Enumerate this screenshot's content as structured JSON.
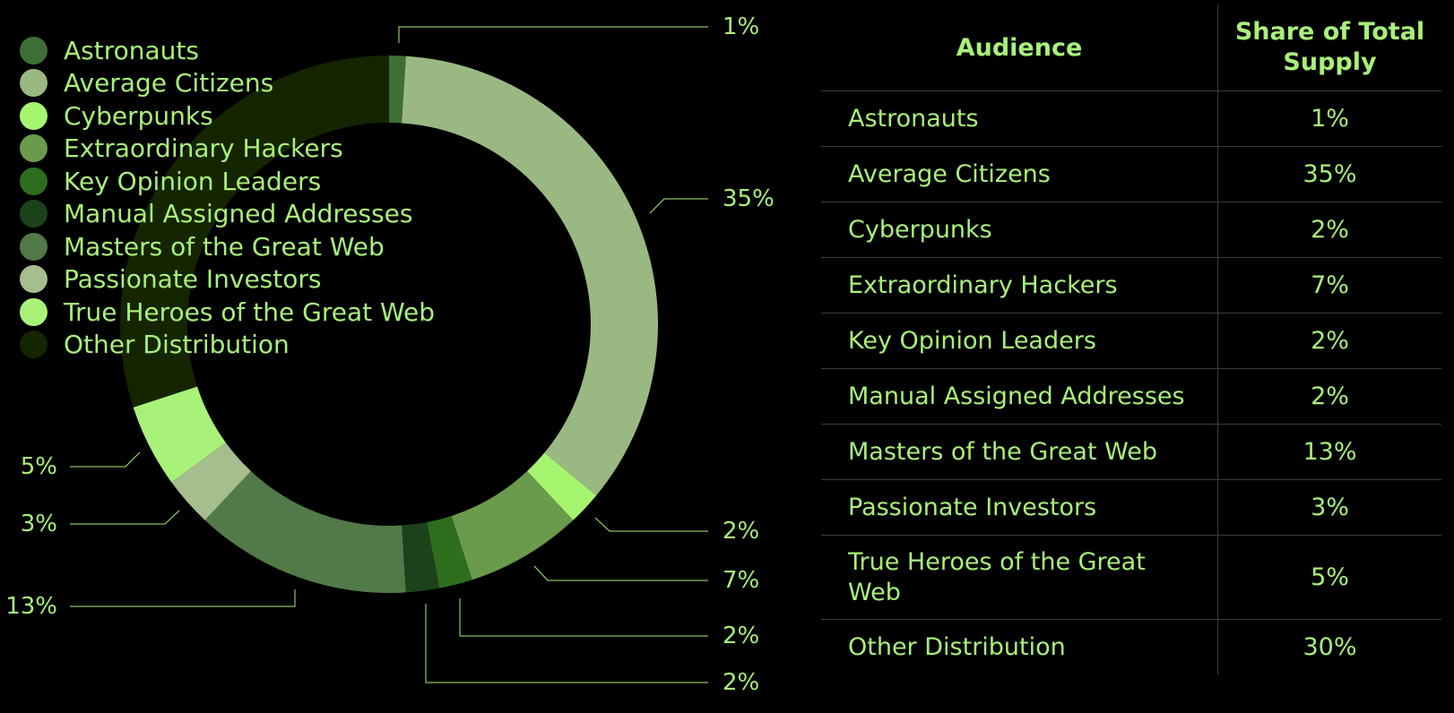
{
  "colors": {
    "text": "#a8f07a",
    "background": "#000000",
    "leader_lines": "#a8f07a",
    "table_rules": "#3c3c3c"
  },
  "chart_data": {
    "type": "pie",
    "variant": "donut",
    "legend_position": "top-left",
    "categories": [
      "Astronauts",
      "Average Citizens",
      "Cyberpunks",
      "Extraordinary Hackers",
      "Key Opinion Leaders",
      "Manual Assigned Addresses",
      "Masters of the Great Web",
      "Passionate Investors",
      "True Heroes of the Great Web",
      "Other Distribution"
    ],
    "values": [
      1,
      35,
      2,
      7,
      2,
      2,
      13,
      3,
      5,
      30
    ],
    "value_labels": [
      "1%",
      "35%",
      "2%",
      "7%",
      "2%",
      "2%",
      "13%",
      "3%",
      "5%",
      ""
    ],
    "colors": [
      "#3d6e35",
      "#9ab982",
      "#a6f56f",
      "#6a9b4c",
      "#2d6e1e",
      "#1c421c",
      "#527a48",
      "#a6bd8d",
      "#a9f27a",
      "#152500"
    ]
  },
  "table": {
    "headers": [
      "Audience",
      "Share of Total Supply"
    ],
    "rows": [
      [
        "Astronauts",
        "1%"
      ],
      [
        "Average Citizens",
        "35%"
      ],
      [
        "Cyberpunks",
        "2%"
      ],
      [
        "Extraordinary Hackers",
        "7%"
      ],
      [
        "Key Opinion Leaders",
        "2%"
      ],
      [
        "Manual Assigned Addresses",
        "2%"
      ],
      [
        "Masters of the Great Web",
        "13%"
      ],
      [
        "Passionate Investors",
        "3%"
      ],
      [
        "True Heroes of the Great Web",
        "5%"
      ],
      [
        "Other Distribution",
        "30%"
      ]
    ]
  }
}
